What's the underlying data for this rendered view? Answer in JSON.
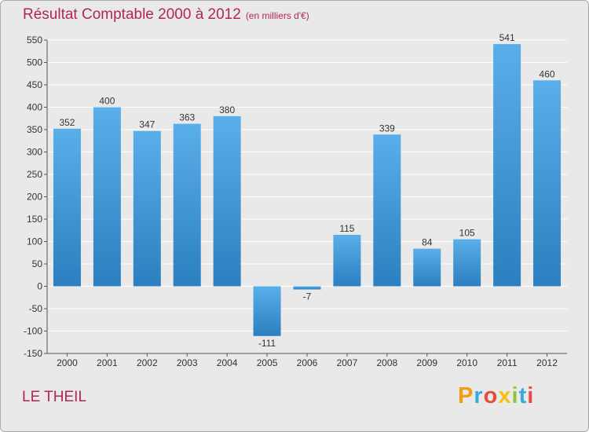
{
  "header": {
    "title": "Résultat Comptable 2000 à 2012",
    "unit_note": "(en milliers d'€)"
  },
  "footer": {
    "place": "LE THEIL",
    "logo": "Proxiti"
  },
  "colors": {
    "bar_top": "#5aaee9",
    "bar_bottom": "#2c7fc0",
    "title": "#b0265a",
    "background": "#e9e9e9"
  },
  "chart_data": {
    "type": "bar",
    "title": "Résultat Comptable 2000 à 2012",
    "subtitle": "(en milliers d'€)",
    "xlabel": "",
    "ylabel": "",
    "categories": [
      "2000",
      "2001",
      "2002",
      "2003",
      "2004",
      "2005",
      "2006",
      "2007",
      "2008",
      "2009",
      "2010",
      "2011",
      "2012"
    ],
    "values": [
      352,
      400,
      347,
      363,
      380,
      -111,
      -7,
      115,
      339,
      84,
      105,
      541,
      460
    ],
    "data_labels": [
      "352",
      "400",
      "347",
      "363",
      "380",
      "-111",
      "-7",
      "115",
      "339",
      "84",
      "105",
      "541",
      "460"
    ],
    "ylim": [
      -150,
      550
    ],
    "yticks": [
      -150,
      -100,
      -50,
      0,
      50,
      100,
      150,
      200,
      250,
      300,
      350,
      400,
      450,
      500,
      550
    ],
    "ytick_labels": [
      "-150",
      "-100",
      "-50",
      "0",
      "50",
      "100",
      "150",
      "200",
      "250",
      "300",
      "350",
      "400",
      "450",
      "500",
      "550"
    ],
    "grid": true
  }
}
